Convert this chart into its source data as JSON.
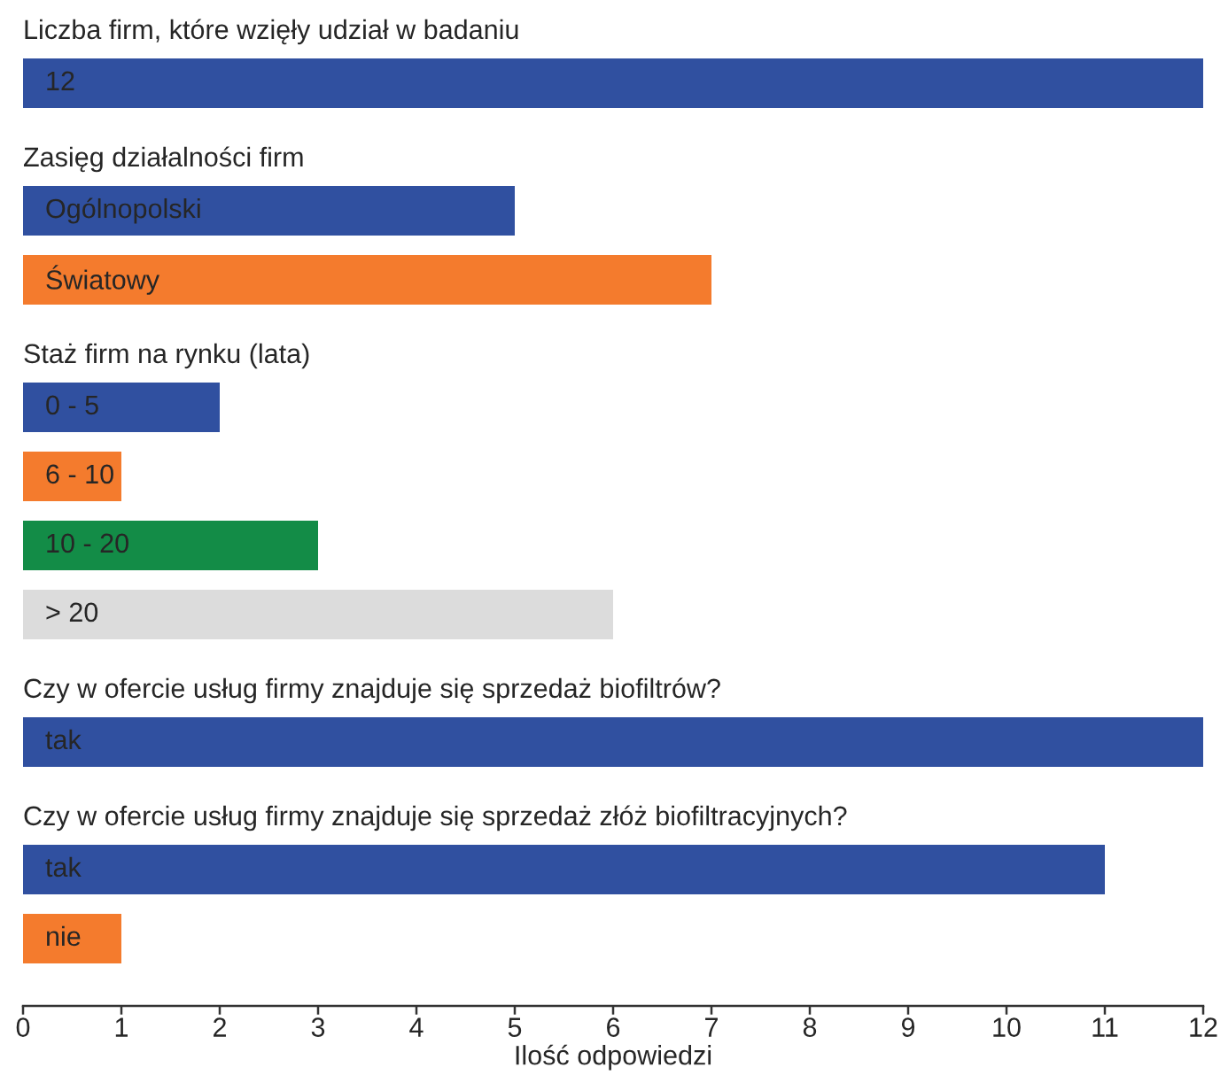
{
  "chart_data": [
    {
      "type": "bar",
      "orientation": "horizontal",
      "title": "Liczba firm, które wzięły udział w badaniu",
      "categories": [
        "12"
      ],
      "values": [
        12
      ],
      "colors": [
        "#3050a0"
      ],
      "xlim": [
        0,
        12
      ],
      "tick_labels": false
    },
    {
      "type": "bar",
      "orientation": "horizontal",
      "title": "Zasięg działalności firm",
      "categories": [
        "Ogólnopolski",
        "Światowy"
      ],
      "values": [
        5,
        7
      ],
      "colors": [
        "#3050a0",
        "#f47b2d"
      ],
      "xlim": [
        0,
        12
      ],
      "tick_labels": false
    },
    {
      "type": "bar",
      "orientation": "horizontal",
      "title": "Staż firm na rynku (lata)",
      "categories": [
        "0 - 5",
        "6 - 10",
        "10 - 20",
        "> 20"
      ],
      "values": [
        2,
        1,
        3,
        6
      ],
      "colors": [
        "#3050a0",
        "#f47b2d",
        "#138c47",
        "#dcdcdc"
      ],
      "xlim": [
        0,
        12
      ],
      "tick_labels": false
    },
    {
      "type": "bar",
      "orientation": "horizontal",
      "title": "Czy w ofercie usług firmy znajduje się sprzedaż biofiltrów?",
      "categories": [
        "tak"
      ],
      "values": [
        12
      ],
      "colors": [
        "#3050a0"
      ],
      "xlim": [
        0,
        12
      ],
      "tick_labels": false
    },
    {
      "type": "bar",
      "orientation": "horizontal",
      "title": "Czy w ofercie usług firmy znajduje się sprzedaż złóż biofiltracyjnych?",
      "categories": [
        "tak",
        "nie"
      ],
      "values": [
        11,
        1
      ],
      "colors": [
        "#3050a0",
        "#f47b2d"
      ],
      "xlim": [
        0,
        12
      ],
      "xticks": [
        0,
        1,
        2,
        3,
        4,
        5,
        6,
        7,
        8,
        9,
        10,
        11,
        12
      ],
      "xlabel": "Ilość odpowiedzi",
      "tick_labels": "x"
    }
  ]
}
